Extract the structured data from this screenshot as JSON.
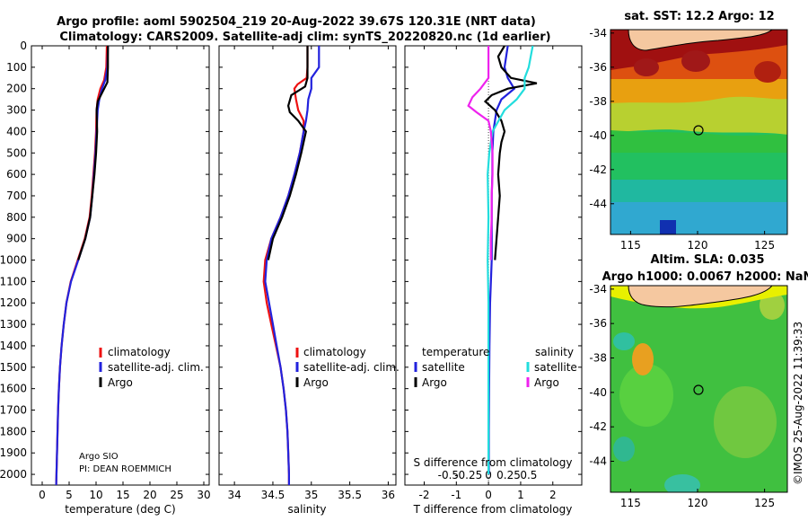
{
  "header": {
    "title_line1": "Argo profile: aoml 5902504_219 20-Aug-2022 39.67S 120.31E (NRT data)",
    "title_line2": "Climatology: CARS2009. Satellite-adj clim: synTS_20220820.nc (1d earlier)"
  },
  "colors": {
    "climatology": "#ee1111",
    "satellite": "#2222dd",
    "argo": "#000000",
    "sat_salinity": "#22dddd",
    "argo_salinity": "#ee22ee"
  },
  "legend": {
    "climatology": "climatology",
    "satellite_adj": "satellite-adj. clim.",
    "argo": "Argo",
    "temperature": "temperature",
    "salinity": "salinity",
    "satellite": "satellite"
  },
  "credit": {
    "line1": "Argo SIO",
    "line2": "PI: DEAN ROEMMICH"
  },
  "watermark": "©IMOS 25-Aug-2022 11:39:33",
  "chart_data": [
    {
      "type": "line",
      "name": "temperature profile",
      "xlabel": "temperature (deg C)",
      "ylabel": "depth",
      "xlim": [
        -2,
        31
      ],
      "ylim": [
        2050,
        0
      ],
      "xticks": [
        0,
        5,
        10,
        15,
        20,
        25,
        30
      ],
      "yticks": [
        0,
        100,
        200,
        300,
        400,
        500,
        600,
        700,
        800,
        900,
        1000,
        1100,
        1200,
        1300,
        1400,
        1500,
        1600,
        1700,
        1800,
        1900,
        2000
      ],
      "series": [
        {
          "name": "climatology",
          "depth": [
            0,
            100,
            160,
            200,
            250,
            300,
            400,
            500,
            600,
            700,
            800,
            900,
            1000,
            1100,
            1200,
            1300,
            1400,
            1500,
            1600,
            1700,
            1800,
            1900,
            2000,
            2050
          ],
          "values": [
            12,
            11.9,
            11.5,
            10.8,
            10.3,
            10.1,
            10,
            9.8,
            9.5,
            9.2,
            8.8,
            7.9,
            6.6,
            5.3,
            4.5,
            4,
            3.6,
            3.3,
            3.1,
            2.95,
            2.85,
            2.75,
            2.65,
            2.6
          ]
        },
        {
          "name": "satellite-adj. clim.",
          "depth": [
            0,
            100,
            160,
            200,
            250,
            300,
            400,
            500,
            600,
            700,
            800,
            900,
            1000,
            1100,
            1200,
            1300,
            1400,
            1500,
            1600,
            1700,
            1800,
            1900,
            2000,
            2050
          ],
          "values": [
            12.2,
            12.1,
            11.7,
            11.1,
            10.6,
            10.3,
            10.1,
            9.9,
            9.6,
            9.3,
            8.9,
            8,
            6.7,
            5.35,
            4.5,
            4,
            3.6,
            3.3,
            3.1,
            2.95,
            2.85,
            2.75,
            2.65,
            2.6
          ]
        },
        {
          "name": "Argo",
          "depth": [
            0,
            100,
            170,
            200,
            260,
            300,
            400,
            500,
            600,
            700,
            800,
            900,
            1000
          ],
          "values": [
            12.2,
            12.2,
            12.1,
            11.5,
            10.3,
            10.1,
            10.2,
            10,
            9.7,
            9.3,
            8.9,
            8,
            6.7
          ]
        }
      ]
    },
    {
      "type": "line",
      "name": "salinity profile",
      "xlabel": "salinity",
      "xlim": [
        33.8,
        36.1
      ],
      "ylim": [
        2050,
        0
      ],
      "xticks": [
        34,
        34.5,
        35,
        35.5,
        36
      ],
      "series": [
        {
          "name": "climatology",
          "depth": [
            0,
            100,
            150,
            180,
            200,
            250,
            300,
            350,
            400,
            500,
            600,
            700,
            800,
            900,
            1000,
            1100,
            1200,
            1300,
            1400,
            1500,
            1600,
            1700,
            1800,
            1900,
            2000,
            2050
          ],
          "values": [
            34.95,
            34.95,
            34.94,
            34.82,
            34.78,
            34.8,
            34.83,
            34.9,
            34.9,
            34.85,
            34.78,
            34.7,
            34.6,
            34.48,
            34.4,
            34.38,
            34.42,
            34.48,
            34.54,
            34.6,
            34.64,
            34.67,
            34.69,
            34.7,
            34.71,
            34.71
          ]
        },
        {
          "name": "satellite-adj. clim.",
          "depth": [
            0,
            100,
            150,
            200,
            250,
            300,
            350,
            400,
            500,
            600,
            700,
            800,
            900,
            1000,
            1100,
            1200,
            1300,
            1400,
            1500,
            1600,
            1700,
            1800,
            1900,
            2000,
            2050
          ],
          "values": [
            35.1,
            35.1,
            35.0,
            35.0,
            34.96,
            34.95,
            34.93,
            34.9,
            34.85,
            34.78,
            34.7,
            34.6,
            34.48,
            34.42,
            34.4,
            34.45,
            34.5,
            34.55,
            34.6,
            34.64,
            34.67,
            34.69,
            34.7,
            34.71,
            34.71
          ]
        },
        {
          "name": "Argo",
          "depth": [
            0,
            100,
            150,
            190,
            230,
            280,
            310,
            350,
            400,
            500,
            600,
            700,
            800,
            900,
            1000
          ],
          "values": [
            34.95,
            34.95,
            34.95,
            34.92,
            34.74,
            34.7,
            34.72,
            34.83,
            34.93,
            34.87,
            34.8,
            34.72,
            34.62,
            34.5,
            34.44
          ]
        }
      ]
    },
    {
      "type": "line",
      "name": "difference from climatology",
      "xlabel": "T difference from climatology",
      "x2label": "S difference from climatology",
      "xlim": [
        -2.6,
        2.9
      ],
      "ylim": [
        2050,
        0
      ],
      "xticks": [
        -2,
        -1,
        0,
        1,
        2
      ],
      "x2ticks": [
        -0.5,
        -0.25,
        0,
        0.25,
        0.5
      ],
      "series": [
        {
          "name": "temperature satellite",
          "depth": [
            0,
            100,
            150,
            200,
            250,
            300,
            400,
            500,
            600,
            700,
            800,
            900,
            1000,
            1200,
            1400,
            1600,
            1800,
            2000
          ],
          "values": [
            0.6,
            0.5,
            0.6,
            0.8,
            0.4,
            0.25,
            0.15,
            0.12,
            0.12,
            0.1,
            0.1,
            0.1,
            0.1,
            0.05,
            0.03,
            0.02,
            0.01,
            0.01
          ]
        },
        {
          "name": "temperature Argo",
          "depth": [
            0,
            50,
            100,
            150,
            175,
            200,
            230,
            260,
            300,
            350,
            400,
            450,
            500,
            600,
            700,
            800,
            900,
            1000
          ],
          "values": [
            0.5,
            0.3,
            0.4,
            0.7,
            1.5,
            0.6,
            0.1,
            -0.1,
            0.2,
            0.4,
            0.5,
            0.4,
            0.35,
            0.3,
            0.35,
            0.3,
            0.25,
            0.2
          ]
        },
        {
          "name": "salinity satellite",
          "depth": [
            0,
            100,
            150,
            200,
            250,
            300,
            400,
            500,
            600,
            800,
            1000,
            1200,
            1400,
            1600,
            1800,
            2000
          ],
          "values": [
            0.55,
            0.5,
            0.45,
            0.45,
            0.35,
            0.2,
            0.05,
            0.01,
            -0.01,
            0,
            -0.01,
            0,
            0,
            0,
            0,
            0
          ]
        },
        {
          "name": "salinity Argo",
          "depth": [
            0,
            100,
            150,
            200,
            240,
            280,
            310,
            350,
            400,
            500,
            600,
            700,
            800,
            900,
            1000
          ],
          "values": [
            0,
            0,
            0,
            -0.1,
            -0.2,
            -0.25,
            -0.15,
            0,
            0.03,
            0.05,
            0.05,
            0.04,
            0.04,
            0.03,
            0.03
          ]
        }
      ]
    },
    {
      "type": "heatmap",
      "name": "satellite SST map",
      "title": "sat. SST: 12.2 Argo: 12",
      "xticks": [
        115,
        120,
        125
      ],
      "yticks": [
        -34,
        -36,
        -38,
        -40,
        -42,
        -44
      ],
      "xlim": [
        113.5,
        126.7
      ],
      "ylim": [
        -45.8,
        -33.8
      ],
      "marker": {
        "lon": 120.31,
        "lat": -39.67
      }
    },
    {
      "type": "heatmap",
      "name": "altimetry SLA map",
      "title_line1": "Altim. SLA: 0.035",
      "title_line2": "Argo h1000: 0.0067 h2000: NaN",
      "xticks": [
        115,
        120,
        125
      ],
      "yticks": [
        -34,
        -36,
        -38,
        -40,
        -42,
        -44
      ],
      "xlim": [
        113.5,
        126.7
      ],
      "ylim": [
        -45.8,
        -33.8
      ],
      "marker": {
        "lon": 120.31,
        "lat": -39.67
      }
    }
  ]
}
